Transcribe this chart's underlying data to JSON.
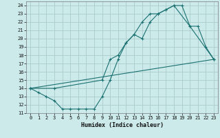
{
  "xlabel": "Humidex (Indice chaleur)",
  "xlim": [
    -0.5,
    23.5
  ],
  "ylim": [
    11,
    24.5
  ],
  "yticks": [
    11,
    12,
    13,
    14,
    15,
    16,
    17,
    18,
    19,
    20,
    21,
    22,
    23,
    24
  ],
  "xticks": [
    0,
    1,
    2,
    3,
    4,
    5,
    6,
    7,
    8,
    9,
    10,
    11,
    12,
    13,
    14,
    15,
    16,
    17,
    18,
    19,
    20,
    21,
    22,
    23
  ],
  "bg_color": "#cceaea",
  "grid_color": "#aacccc",
  "line_color": "#1a7070",
  "curve1_x": [
    0,
    1,
    2,
    3,
    4,
    5,
    6,
    7,
    8,
    9,
    10,
    11,
    12,
    13,
    14,
    15,
    16,
    17,
    18,
    19,
    20,
    21,
    22,
    23
  ],
  "curve1_y": [
    14,
    13.5,
    13,
    12.5,
    11.5,
    11.5,
    11.5,
    11.5,
    11.5,
    13,
    15,
    17.5,
    19.5,
    20.5,
    20,
    22,
    23,
    23.5,
    24,
    24,
    21.5,
    21.5,
    19,
    17.5
  ],
  "curve2_x": [
    0,
    3,
    9,
    10,
    11,
    12,
    13,
    14,
    15,
    16,
    17,
    18,
    20,
    23
  ],
  "curve2_y": [
    14,
    14,
    15,
    17.5,
    18,
    19.5,
    20.5,
    22,
    23,
    23,
    23.5,
    24,
    21.5,
    17.5
  ],
  "curve3_x": [
    0,
    23
  ],
  "curve3_y": [
    14,
    17.5
  ]
}
